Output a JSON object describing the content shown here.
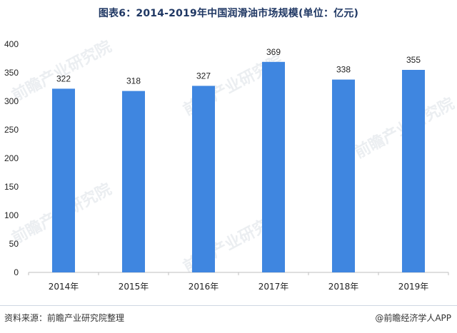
{
  "title": "图表6：2014-2019年中国润滑油市场规模(单位：亿元)",
  "source": "资料来源：前瞻产业研究院整理",
  "credit": "@前瞻经济学人APP",
  "watermark_text": "前瞻产业研究院",
  "colors": {
    "bar": "#3f86e0",
    "axis": "#bfbfbf",
    "label": "#222222"
  },
  "chart_data": {
    "type": "bar",
    "categories": [
      "2014年",
      "2015年",
      "2016年",
      "2017年",
      "2018年",
      "2019年"
    ],
    "values": [
      322,
      318,
      327,
      369,
      338,
      355
    ],
    "ylim": [
      0,
      400
    ],
    "yticks": [
      "0",
      "50",
      "100",
      "150",
      "200",
      "250",
      "300",
      "350",
      "400"
    ],
    "grid": false,
    "legend": "none",
    "title": "图表6：2014-2019年中国润滑油市场规模(单位：亿元)",
    "xlabel": "",
    "ylabel": ""
  }
}
